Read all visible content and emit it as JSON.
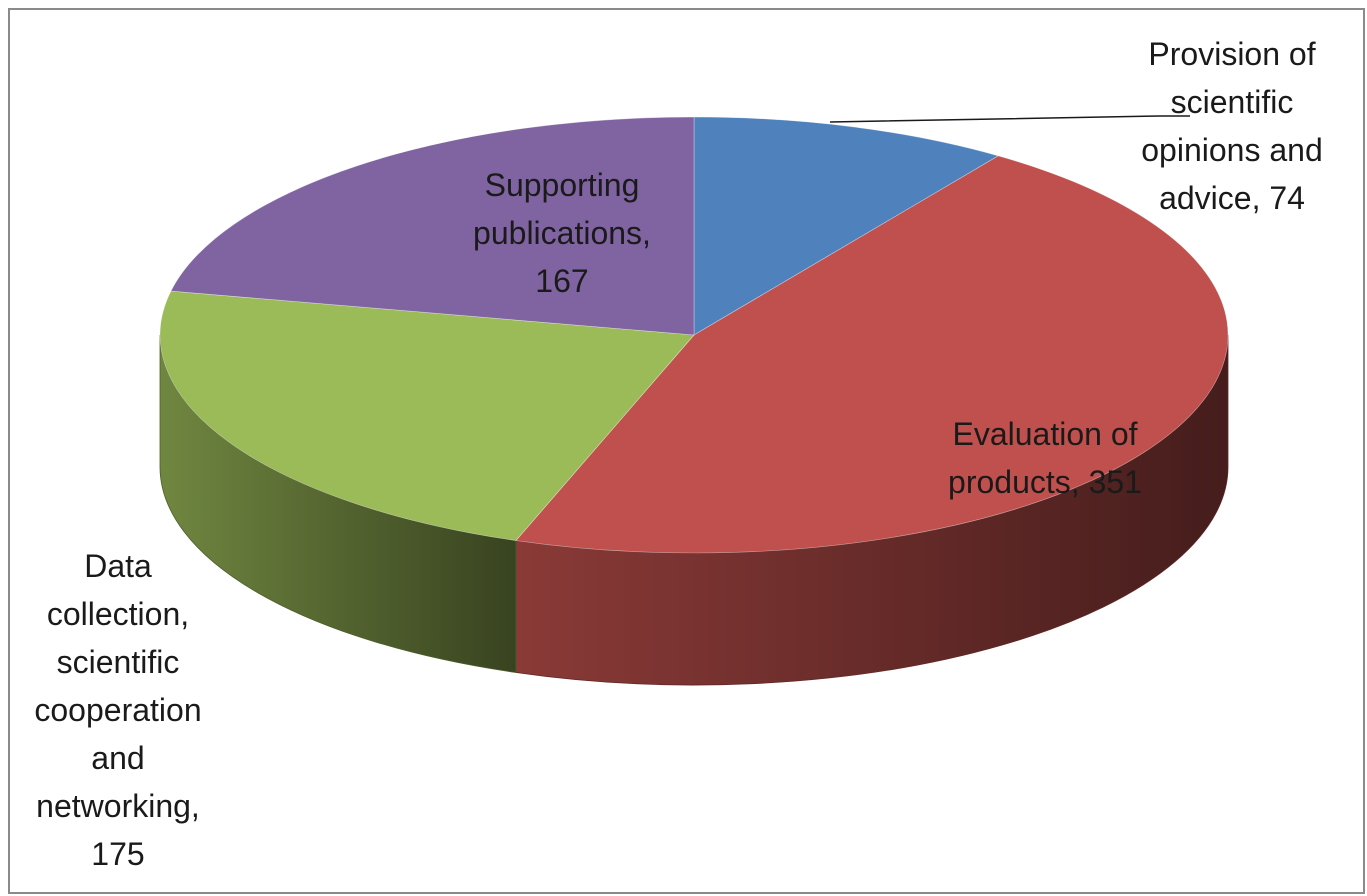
{
  "chart_data": {
    "type": "pie",
    "title": "",
    "slices": [
      {
        "label_lines": [
          "Provision of",
          "scientific",
          "opinions and",
          "advice, 74"
        ],
        "category": "Provision of scientific opinions and advice",
        "value": 74,
        "color": "#4f81bd"
      },
      {
        "label_lines": [
          "Evaluation of",
          "products, 351"
        ],
        "category": "Evaluation of products",
        "value": 351,
        "color": "#c0504d"
      },
      {
        "label_lines": [
          "Data",
          "collection,",
          "scientific",
          "cooperation",
          "and",
          "networking,",
          "175"
        ],
        "category": "Data collection, scientific cooperation and networking",
        "value": 175,
        "color": "#9bbb59"
      },
      {
        "label_lines": [
          "Supporting",
          "publications,",
          "167"
        ],
        "category": "Supporting publications",
        "value": 167,
        "color": "#8064a2"
      }
    ],
    "style": "3d",
    "legend": "none",
    "data_labels": "category and value"
  }
}
